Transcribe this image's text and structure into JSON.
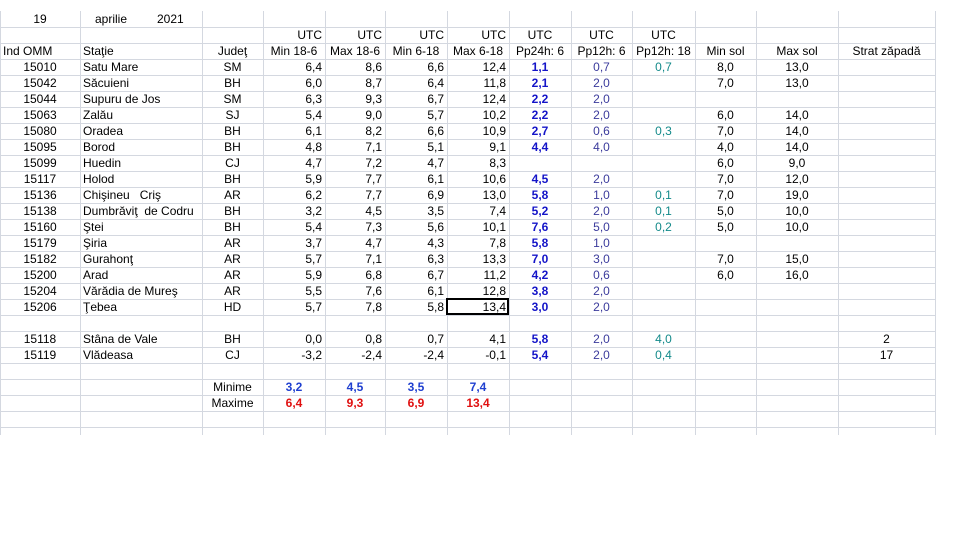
{
  "header": {
    "day": "19",
    "month": "aprilie",
    "year": "2021"
  },
  "utc": [
    "UTC",
    "UTC",
    "UTC",
    "UTC",
    "UTC",
    "UTC",
    "UTC"
  ],
  "columns": [
    "Ind OMM",
    "Staţie",
    "Judeţ",
    "Min 18-6",
    "Max 18-6",
    "Min 6-18",
    "Max 6-18",
    "Pp24h: 6",
    "Pp12h: 6",
    "Pp12h: 18",
    "Min sol",
    "Max sol",
    "Strat zăpadă"
  ],
  "stations": [
    [
      "15010",
      "Satu Mare",
      "SM",
      "6,4",
      "8,6",
      "6,6",
      "12,4",
      "1,1",
      "0,7",
      "0,7",
      "8,0",
      "13,0",
      null
    ],
    [
      "15042",
      "Săcuieni",
      "BH",
      "6,0",
      "8,7",
      "6,4",
      "11,8",
      "2,1",
      "2,0",
      null,
      "7,0",
      "13,0",
      null
    ],
    [
      "15044",
      "Supuru de Jos",
      "SM",
      "6,3",
      "9,3",
      "6,7",
      "12,4",
      "2,2",
      "2,0",
      null,
      null,
      null,
      null
    ],
    [
      "15063",
      "Zalău",
      "SJ",
      "5,4",
      "9,0",
      "5,7",
      "10,2",
      "2,2",
      "2,0",
      null,
      "6,0",
      "14,0",
      null
    ],
    [
      "15080",
      "Oradea",
      "BH",
      "6,1",
      "8,2",
      "6,6",
      "10,9",
      "2,7",
      "0,6",
      "0,3",
      "7,0",
      "14,0",
      null
    ],
    [
      "15095",
      "Borod",
      "BH",
      "4,8",
      "7,1",
      "5,1",
      "9,1",
      "4,4",
      "4,0",
      null,
      "4,0",
      "14,0",
      null
    ],
    [
      "15099",
      "Huedin",
      "CJ",
      "4,7",
      "7,2",
      "4,7",
      "8,3",
      null,
      null,
      null,
      "6,0",
      "9,0",
      null
    ],
    [
      "15117",
      "Holod",
      "BH",
      "5,9",
      "7,7",
      "6,1",
      "10,6",
      "4,5",
      "2,0",
      null,
      "7,0",
      "12,0",
      null
    ],
    [
      "15136",
      "Chişineu   Criş",
      "AR",
      "6,2",
      "7,7",
      "6,9",
      "13,0",
      "5,8",
      "1,0",
      "0,1",
      "7,0",
      "19,0",
      null
    ],
    [
      "15138",
      "Dumbrăviţ  de Codru",
      "BH",
      "3,2",
      "4,5",
      "3,5",
      "7,4",
      "5,2",
      "2,0",
      "0,1",
      "5,0",
      "10,0",
      null
    ],
    [
      "15160",
      "Ştei",
      "BH",
      "5,4",
      "7,3",
      "5,6",
      "10,1",
      "7,6",
      "5,0",
      "0,2",
      "5,0",
      "10,0",
      null
    ],
    [
      "15179",
      "Şiria",
      "AR",
      "3,7",
      "4,7",
      "4,3",
      "7,8",
      "5,8",
      "1,0",
      null,
      null,
      null,
      null
    ],
    [
      "15182",
      "Gurahonţ",
      "AR",
      "5,7",
      "7,1",
      "6,3",
      "13,3",
      "7,0",
      "3,0",
      null,
      "7,0",
      "15,0",
      null
    ],
    [
      "15200",
      "Arad",
      "AR",
      "5,9",
      "6,8",
      "6,7",
      "11,2",
      "4,2",
      "0,6",
      null,
      "6,0",
      "16,0",
      null
    ],
    [
      "15204",
      "Vărădia de Mureş",
      "AR",
      "5,5",
      "7,6",
      "6,1",
      "12,8",
      "3,8",
      "2,0",
      null,
      null,
      null,
      null
    ],
    [
      "15206",
      "Ţebea",
      "HD",
      "5,7",
      "7,8",
      "5,8",
      "13,4",
      "3,0",
      "2,0",
      null,
      null,
      null,
      null
    ]
  ],
  "mountain_stations": [
    [
      "15118",
      "Stâna de Vale",
      "BH",
      "0,0",
      "0,8",
      "0,7",
      "4,1",
      "5,8",
      "2,0",
      "4,0",
      null,
      null,
      "2"
    ],
    [
      "15119",
      "Vlădeasa",
      "CJ",
      "-3,2",
      "-2,4",
      "-2,4",
      "-0,1",
      "5,4",
      "2,0",
      "0,4",
      null,
      null,
      "17"
    ]
  ],
  "summary": {
    "min_label": "Minime",
    "min": [
      "3,2",
      "4,5",
      "3,5",
      "7,4"
    ],
    "max_label": "Maxime",
    "max": [
      "6,4",
      "9,3",
      "6,9",
      "13,4"
    ]
  }
}
